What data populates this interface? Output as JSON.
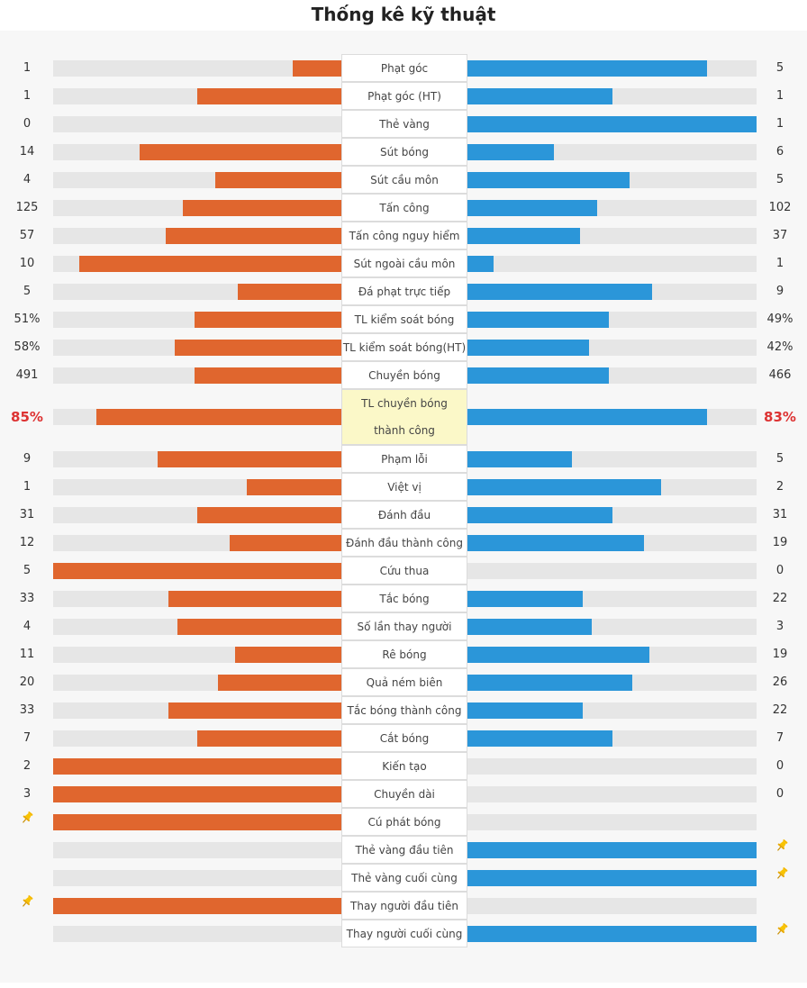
{
  "title": "Thống kê kỹ thuật",
  "colors": {
    "home": "#e0662e",
    "away": "#2b96d9",
    "highlight_bg": "#fbf8c8",
    "highlight_text": "#dd3333"
  },
  "icons": {
    "marker": "pin-icon"
  },
  "stats": [
    {
      "label": "Phạt góc",
      "home": "1",
      "away": "5",
      "home_pct": 0.17,
      "away_pct": 0.83
    },
    {
      "label": "Phạt góc (HT)",
      "home": "1",
      "away": "1",
      "home_pct": 0.5,
      "away_pct": 0.5
    },
    {
      "label": "Thẻ vàng",
      "home": "0",
      "away": "1",
      "home_pct": 0,
      "away_pct": 1
    },
    {
      "label": "Sút bóng",
      "home": "14",
      "away": "6",
      "home_pct": 0.7,
      "away_pct": 0.3
    },
    {
      "label": "Sút cầu môn",
      "home": "4",
      "away": "5",
      "home_pct": 0.44,
      "away_pct": 0.56
    },
    {
      "label": "Tấn công",
      "home": "125",
      "away": "102",
      "home_pct": 0.55,
      "away_pct": 0.45
    },
    {
      "label": "Tấn công nguy hiểm",
      "home": "57",
      "away": "37",
      "home_pct": 0.61,
      "away_pct": 0.39
    },
    {
      "label": "Sút ngoài cầu môn",
      "home": "10",
      "away": "1",
      "home_pct": 0.91,
      "away_pct": 0.09
    },
    {
      "label": "Đá phạt trực tiếp",
      "home": "5",
      "away": "9",
      "home_pct": 0.36,
      "away_pct": 0.64
    },
    {
      "label": "TL kiểm soát bóng",
      "home": "51%",
      "away": "49%",
      "home_pct": 0.51,
      "away_pct": 0.49
    },
    {
      "label": "TL kiểm soát bóng(HT)",
      "home": "58%",
      "away": "42%",
      "home_pct": 0.58,
      "away_pct": 0.42
    },
    {
      "label": "Chuyền bóng",
      "home": "491",
      "away": "466",
      "home_pct": 0.51,
      "away_pct": 0.49
    },
    {
      "label": "TL chuyền bóng thành công",
      "home": "85%",
      "away": "83%",
      "home_pct": 0.85,
      "away_pct": 0.83,
      "highlight": true
    },
    {
      "label": "Phạm lỗi",
      "home": "9",
      "away": "5",
      "home_pct": 0.64,
      "away_pct": 0.36
    },
    {
      "label": "Việt vị",
      "home": "1",
      "away": "2",
      "home_pct": 0.33,
      "away_pct": 0.67
    },
    {
      "label": "Đánh đầu",
      "home": "31",
      "away": "31",
      "home_pct": 0.5,
      "away_pct": 0.5
    },
    {
      "label": "Đánh đầu thành công",
      "home": "12",
      "away": "19",
      "home_pct": 0.39,
      "away_pct": 0.61
    },
    {
      "label": "Cứu thua",
      "home": "5",
      "away": "0",
      "home_pct": 1,
      "away_pct": 0
    },
    {
      "label": "Tắc bóng",
      "home": "33",
      "away": "22",
      "home_pct": 0.6,
      "away_pct": 0.4
    },
    {
      "label": "Số lần thay người",
      "home": "4",
      "away": "3",
      "home_pct": 0.57,
      "away_pct": 0.43
    },
    {
      "label": "Rê bóng",
      "home": "11",
      "away": "19",
      "home_pct": 0.37,
      "away_pct": 0.63
    },
    {
      "label": "Quả ném biên",
      "home": "20",
      "away": "26",
      "home_pct": 0.43,
      "away_pct": 0.57
    },
    {
      "label": "Tắc bóng thành công",
      "home": "33",
      "away": "22",
      "home_pct": 0.6,
      "away_pct": 0.4
    },
    {
      "label": "Cắt bóng",
      "home": "7",
      "away": "7",
      "home_pct": 0.5,
      "away_pct": 0.5
    },
    {
      "label": "Kiến tạo",
      "home": "2",
      "away": "0",
      "home_pct": 1,
      "away_pct": 0
    },
    {
      "label": "Chuyền dài",
      "home": "3",
      "away": "0",
      "home_pct": 1,
      "away_pct": 0
    },
    {
      "label": "Cú phát bóng",
      "home": "",
      "away": "",
      "home_pct": 1,
      "away_pct": 0,
      "home_pin": true
    },
    {
      "label": "Thẻ vàng đầu tiên",
      "home": "",
      "away": "",
      "home_pct": 0,
      "away_pct": 1,
      "away_pin": true
    },
    {
      "label": "Thẻ vàng cuối cùng",
      "home": "",
      "away": "",
      "home_pct": 0,
      "away_pct": 1,
      "away_pin": true
    },
    {
      "label": "Thay người đầu tiên",
      "home": "",
      "away": "",
      "home_pct": 1,
      "away_pct": 0,
      "home_pin": true
    },
    {
      "label": "Thay người cuối cùng",
      "home": "",
      "away": "",
      "home_pct": 0,
      "away_pct": 1,
      "away_pin": true
    }
  ]
}
